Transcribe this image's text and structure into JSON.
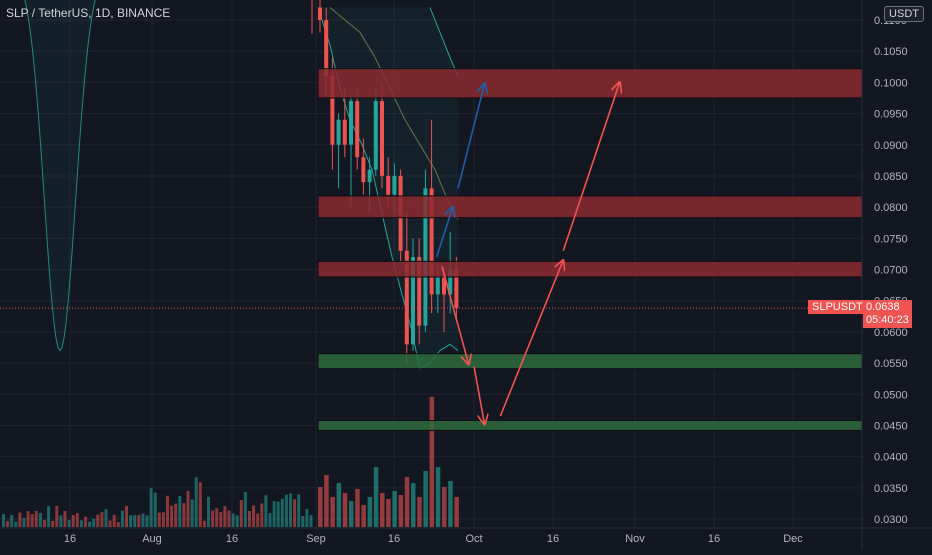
{
  "header": {
    "symbol_title": "SLP / TetherUS, 1D, BINANCE",
    "currency": "USDT"
  },
  "price_tag": {
    "symbol": "SLPUSDT",
    "price": "0.0638",
    "countdown": "05:40:23",
    "color": "#f05350"
  },
  "colors": {
    "background": "#131722",
    "up": "#26a69a",
    "down": "#ef5350",
    "band_line": "#26a69a",
    "resistance_zone": "#8b2a2e",
    "support_zone": "#2e6b3a",
    "red_arrow": "#f05350",
    "blue_arrow": "#1e5ea8"
  },
  "chart_data": {
    "type": "candlestick",
    "y_axis": {
      "min": 0.03,
      "max": 0.11,
      "ticks": [
        "0.0300",
        "0.0350",
        "0.0400",
        "0.0450",
        "0.0500",
        "0.0550",
        "0.0600",
        "0.0650",
        "0.0700",
        "0.0750",
        "0.0800",
        "0.0850",
        "0.0900",
        "0.0950",
        "0.1000",
        "0.1050",
        "0.1100"
      ]
    },
    "x_axis": {
      "ticks": [
        "16",
        "Aug",
        "16",
        "Sep",
        "16",
        "Oct",
        "16",
        "Nov",
        "16",
        "Dec"
      ]
    },
    "last_price": 0.0638,
    "zones": [
      {
        "kind": "resistance",
        "low": 0.0975,
        "high": 0.1022
      },
      {
        "kind": "resistance",
        "low": 0.0783,
        "high": 0.0818
      },
      {
        "kind": "resistance",
        "low": 0.0688,
        "high": 0.0713
      },
      {
        "kind": "support",
        "low": 0.0541,
        "high": 0.0565
      },
      {
        "kind": "support",
        "low": 0.0442,
        "high": 0.0458
      }
    ],
    "arrows_red": [
      {
        "from": "Sep 25",
        "from_price": 0.0705,
        "to": "Sep 30",
        "to_price": 0.0548
      },
      {
        "from": "Oct 1",
        "from_price": 0.0545,
        "to": "Oct 3",
        "to_price": 0.0452
      },
      {
        "from": "Oct 6",
        "from_price": 0.0465,
        "to": "Oct 18",
        "to_price": 0.0715
      },
      {
        "from": "Oct 18",
        "from_price": 0.073,
        "to": "Oct 29",
        "to_price": 0.1
      }
    ],
    "arrows_blue": [
      {
        "from": "Sep 24",
        "from_price": 0.072,
        "to": "Sep 27",
        "to_price": 0.08
      },
      {
        "from": "Sep 28",
        "from_price": 0.083,
        "to": "Oct 3",
        "to_price": 0.0998
      }
    ]
  }
}
